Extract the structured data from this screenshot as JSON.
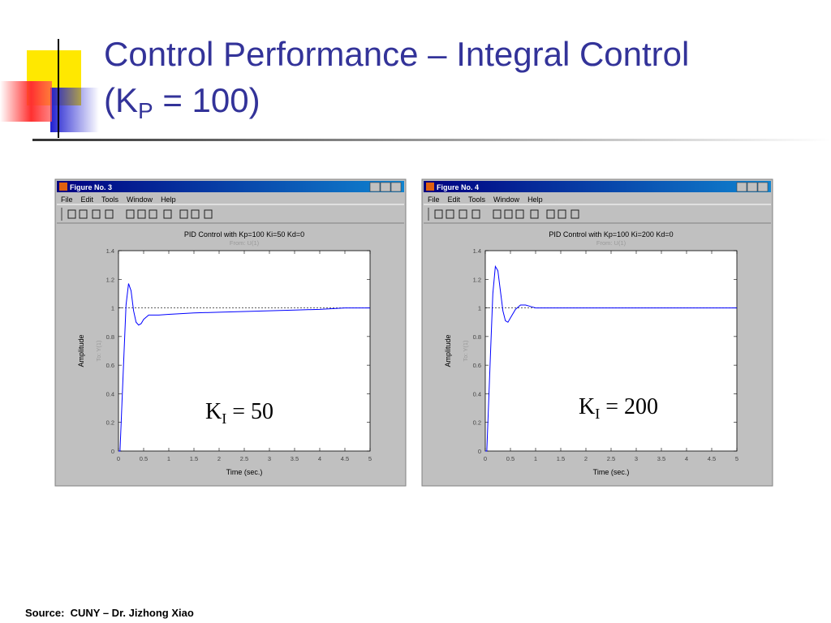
{
  "header": {
    "title_line1": "Control Performance – Integral Control",
    "title_line2": [
      "(K",
      "P",
      " = 100)"
    ]
  },
  "chart_data": [
    {
      "type": "line",
      "window_title": "Figure No. 3",
      "menu": [
        "File",
        "Edit",
        "Tools",
        "Window",
        "Help"
      ],
      "title": "PID Control with Kp=100 Ki=50 Kd=0",
      "subtitle": "From: U(1)",
      "xlabel": "Time (sec.)",
      "ylabel": "Amplitude",
      "ylabel2": "To: Y(1)",
      "annotation": [
        "K",
        "I",
        " = 50"
      ],
      "x": [
        0,
        0.03,
        0.1,
        0.15,
        0.2,
        0.25,
        0.3,
        0.35,
        0.4,
        0.45,
        0.5,
        0.6,
        0.7,
        0.8,
        1,
        1.5,
        2,
        2.5,
        3,
        3.5,
        4,
        4.5,
        5
      ],
      "values": [
        0,
        0,
        0.6,
        1.02,
        1.17,
        1.12,
        0.98,
        0.9,
        0.88,
        0.89,
        0.92,
        0.95,
        0.95,
        0.95,
        0.955,
        0.965,
        0.97,
        0.975,
        0.98,
        0.985,
        0.99,
        1.0,
        1.0
      ],
      "color": "#0000ff",
      "reference_line": 1,
      "xlim": [
        0,
        5
      ],
      "xticks": [
        0,
        0.5,
        1,
        1.5,
        2,
        2.5,
        3,
        3.5,
        4,
        4.5,
        5
      ],
      "ylim": [
        0,
        1.4
      ],
      "yticks": [
        0,
        0.2,
        0.4,
        0.6,
        0.8,
        1,
        1.2,
        1.4
      ],
      "grid": false
    },
    {
      "type": "line",
      "window_title": "Figure No. 4",
      "menu": [
        "File",
        "Edit",
        "Tools",
        "Window",
        "Help"
      ],
      "title": "PID Control with Kp=100 Ki=200 Kd=0",
      "subtitle": "From: U(1)",
      "xlabel": "Time (sec.)",
      "ylabel": "Amplitude",
      "ylabel2": "To: Y(1)",
      "annotation": [
        "K",
        "I",
        " = 200"
      ],
      "x": [
        0,
        0.03,
        0.1,
        0.15,
        0.2,
        0.25,
        0.3,
        0.35,
        0.4,
        0.45,
        0.5,
        0.6,
        0.7,
        0.8,
        0.9,
        1,
        1.2,
        1.4,
        2,
        3,
        4,
        5
      ],
      "values": [
        0,
        0,
        0.65,
        1.1,
        1.29,
        1.26,
        1.12,
        0.98,
        0.91,
        0.9,
        0.93,
        0.99,
        1.02,
        1.02,
        1.01,
        1.0,
        1.0,
        1.0,
        1.0,
        1.0,
        1.0,
        1.0
      ],
      "color": "#0000ff",
      "reference_line": 1,
      "xlim": [
        0,
        5
      ],
      "xticks": [
        0,
        0.5,
        1,
        1.5,
        2,
        2.5,
        3,
        3.5,
        4,
        4.5,
        5
      ],
      "ylim": [
        0,
        1.4
      ],
      "yticks": [
        0,
        0.2,
        0.4,
        0.6,
        0.8,
        1,
        1.2,
        1.4
      ],
      "grid": false
    }
  ],
  "footer": {
    "source": "Source:  CUNY – Dr. Jizhong Xiao"
  }
}
